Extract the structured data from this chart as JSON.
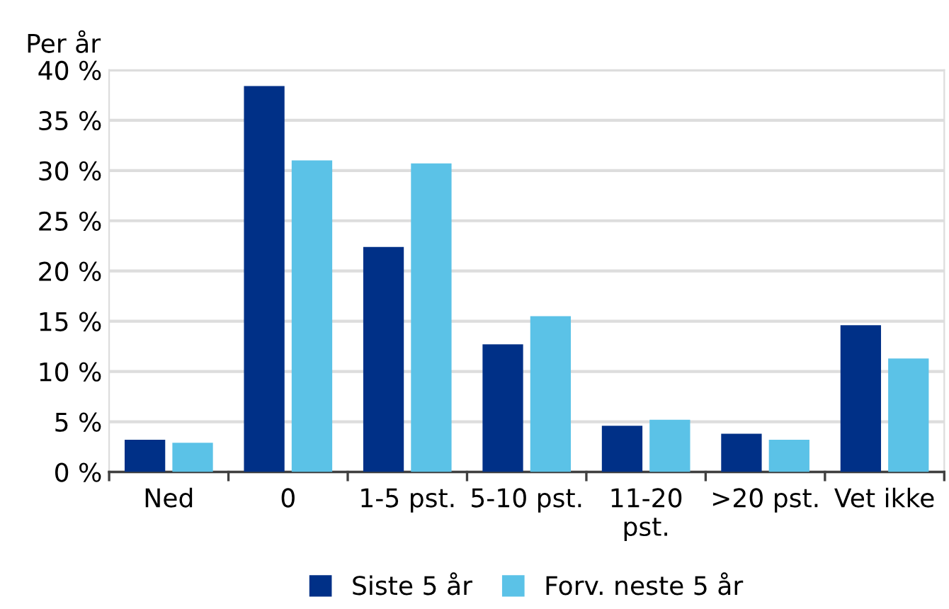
{
  "chart_data": {
    "type": "bar",
    "ylabel": "Per år",
    "categories": [
      "Ned",
      "0",
      "1-5 pst.",
      "5-10 pst.",
      "11-20\npst.",
      ">20 pst.",
      "Vet ikke"
    ],
    "series": [
      {
        "name": "Siste 5 år",
        "color": "#003087",
        "values": [
          3.2,
          38.4,
          22.4,
          12.7,
          4.6,
          3.8,
          14.6
        ]
      },
      {
        "name": "Forv. neste 5 år",
        "color": "#5bc2e7",
        "values": [
          2.9,
          31.0,
          30.7,
          15.5,
          5.2,
          3.2,
          11.3
        ]
      }
    ],
    "ylim": [
      0,
      40
    ],
    "yticks": [
      {
        "value": 0,
        "label": "0 %"
      },
      {
        "value": 5,
        "label": "5 %"
      },
      {
        "value": 10,
        "label": "10 %"
      },
      {
        "value": 15,
        "label": "15 %"
      },
      {
        "value": 20,
        "label": "20 %"
      },
      {
        "value": 25,
        "label": "25 %"
      },
      {
        "value": 30,
        "label": "30 %"
      },
      {
        "value": 35,
        "label": "35 %"
      },
      {
        "value": 40,
        "label": "40 %"
      }
    ],
    "grid": "y",
    "legend": "bottom"
  }
}
